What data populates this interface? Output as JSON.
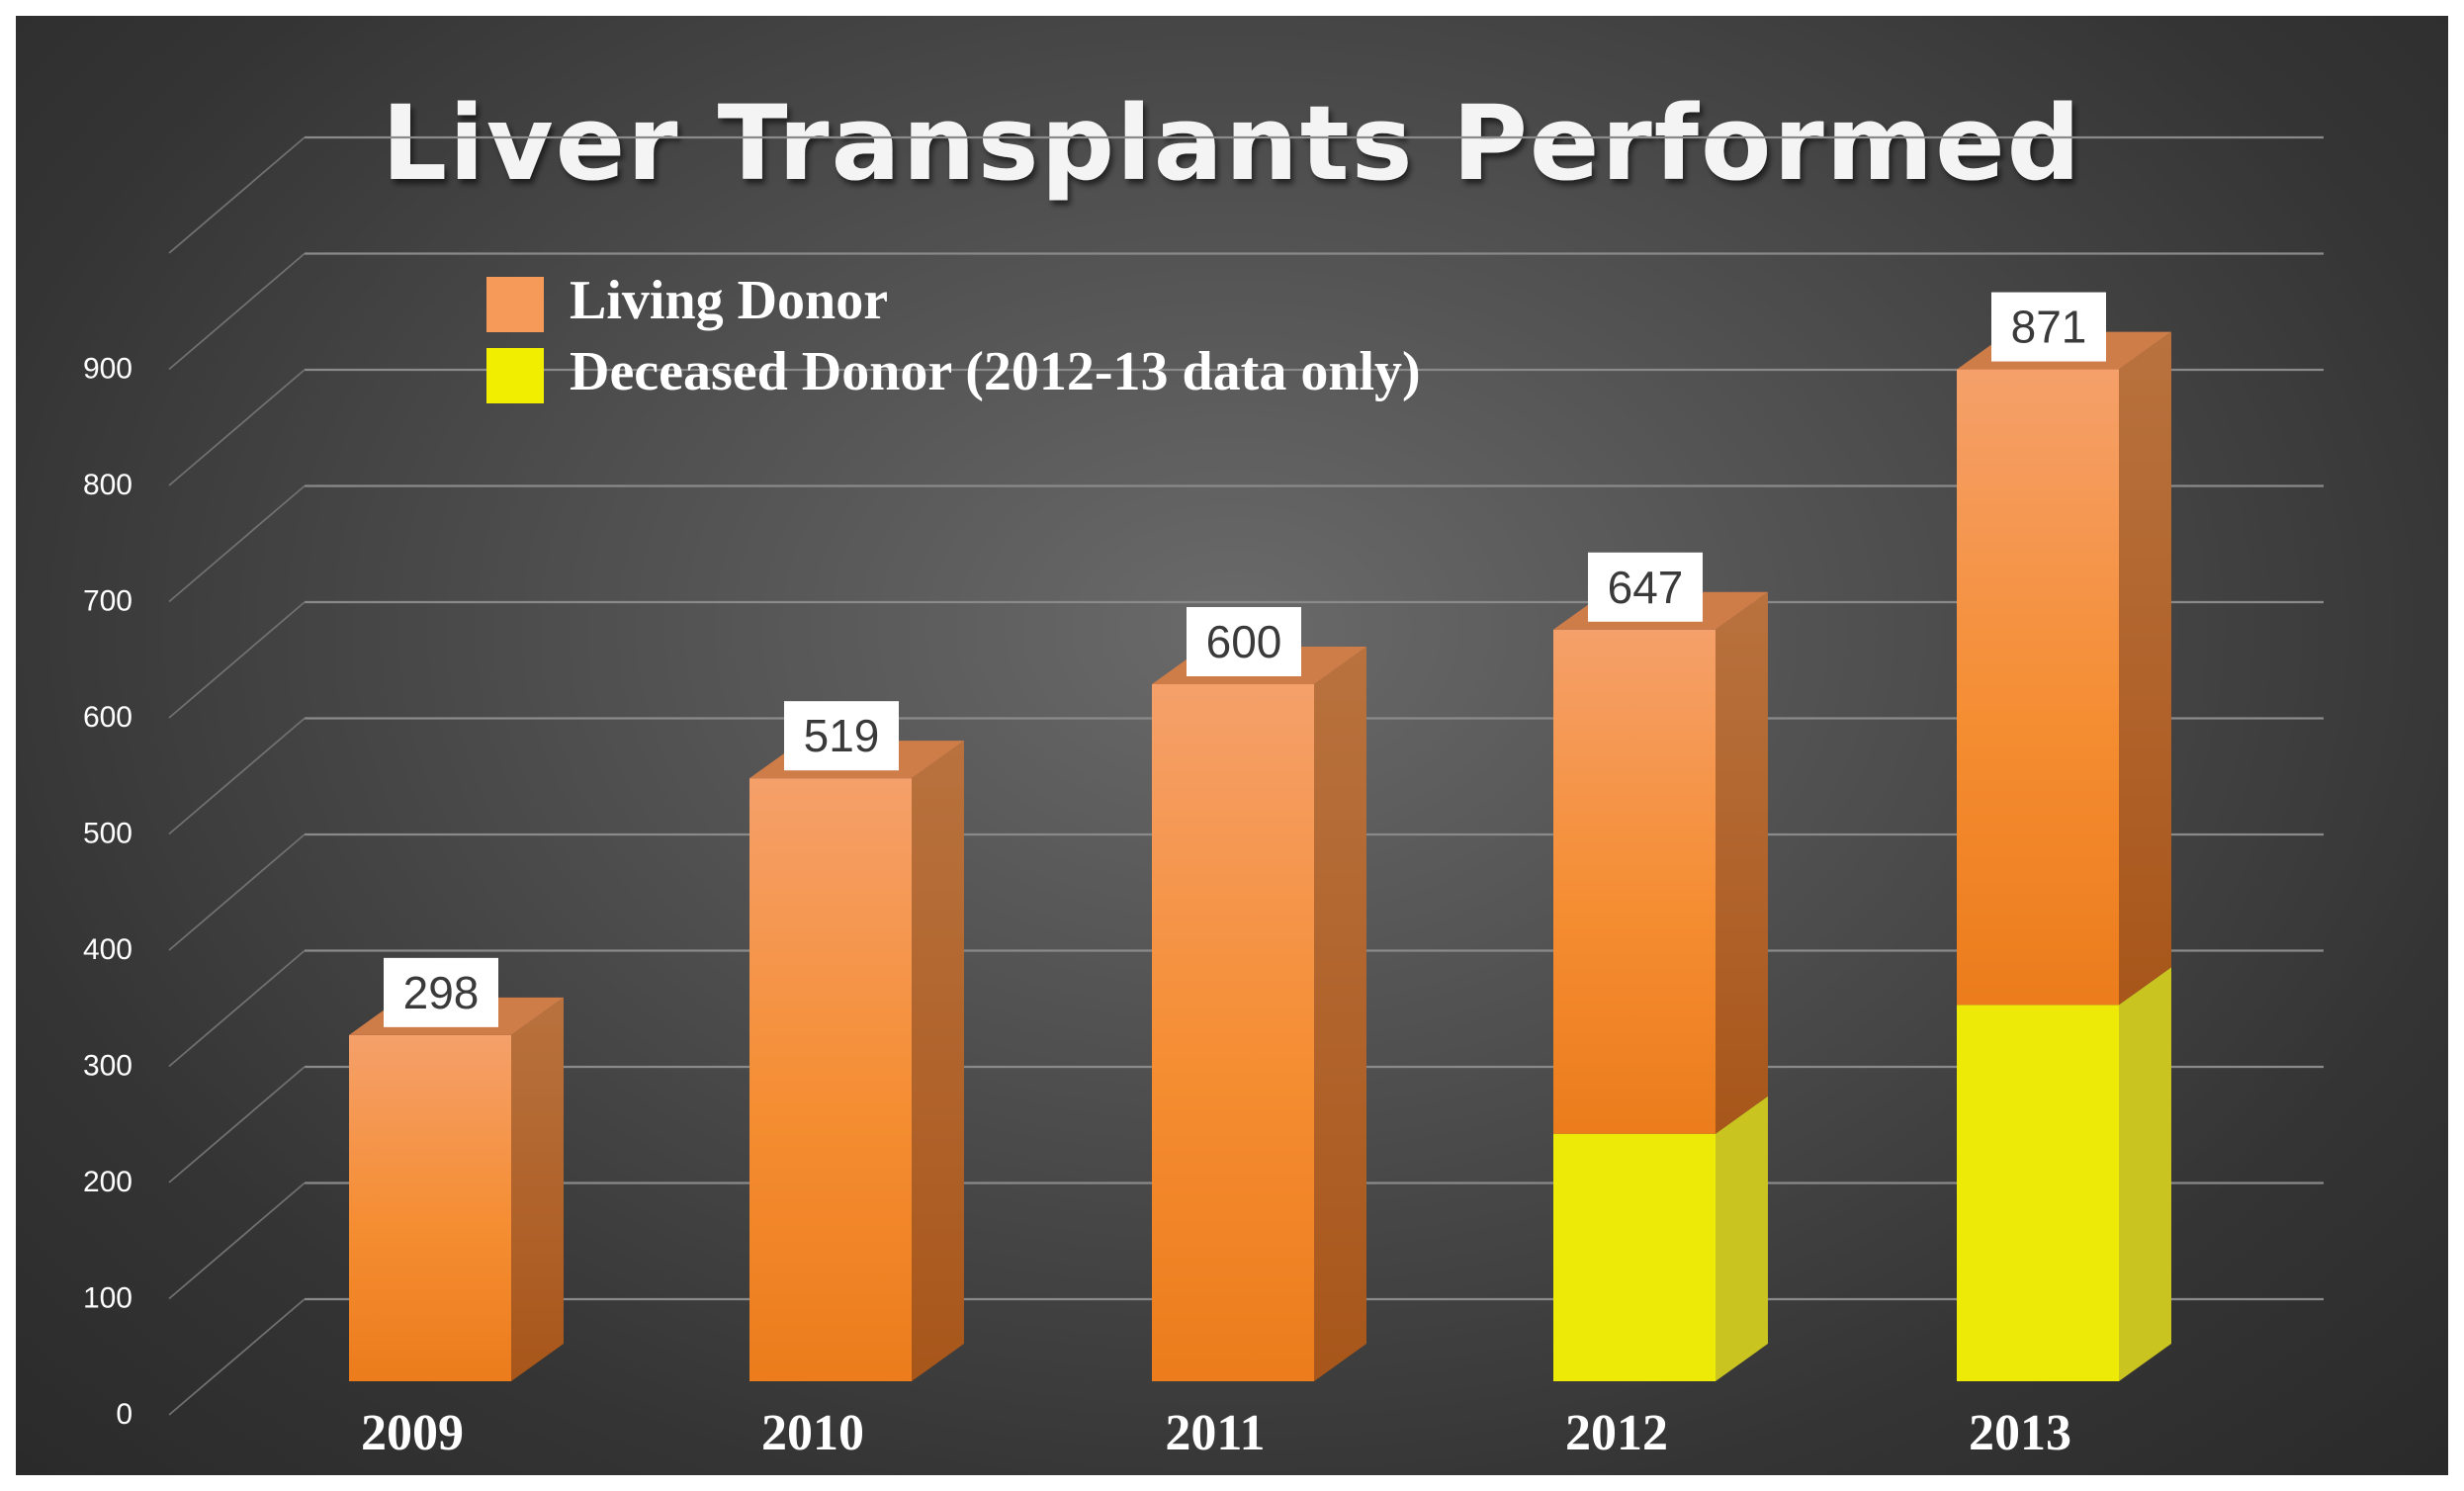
{
  "chart_data": {
    "type": "bar",
    "stacked": true,
    "three_d": true,
    "title": "Liver Transplants Performed",
    "categories": [
      "2009",
      "2010",
      "2011",
      "2012",
      "2013"
    ],
    "series": [
      {
        "name": "Deceased Donor (2012-13 data only)",
        "values": [
          0,
          0,
          0,
          213,
          324
        ],
        "color": "#eeea08"
      },
      {
        "name": "Living Donor",
        "values": [
          298,
          519,
          600,
          434,
          547
        ],
        "color": "#f5903a"
      }
    ],
    "data_labels": [
      "298",
      "519",
      "600",
      "647",
      "871"
    ],
    "totals": [
      298,
      519,
      600,
      647,
      871
    ],
    "y_ticks": [
      "0",
      "100",
      "200",
      "300",
      "400",
      "500",
      "600",
      "700",
      "800",
      "900"
    ],
    "ylim": [
      0,
      1000
    ],
    "grid": true,
    "legend_position": "top-left",
    "background_color": "#4a4a4a"
  }
}
